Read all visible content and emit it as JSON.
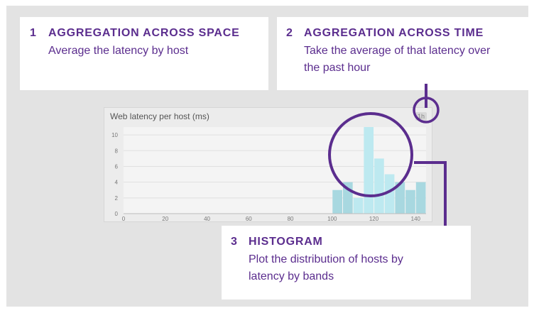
{
  "cards": {
    "space": {
      "number": "1",
      "title": "AGGREGATION ACROSS SPACE",
      "body": "Average the latency by host"
    },
    "time": {
      "number": "2",
      "title": "AGGREGATION ACROSS TIME",
      "body_line1": "Take the average of that latency over",
      "body_line2": "the past hour"
    },
    "histogram": {
      "number": "3",
      "title": "HISTOGRAM",
      "body_line1": "Plot the distribution of hosts by",
      "body_line2": "latency by bands"
    }
  },
  "widget": {
    "title": "Web latency per host (ms)",
    "time_badge": "1h"
  },
  "colors": {
    "accent": "#5b2d8e",
    "bar": "#a8d8e0",
    "bar_highlight": "#bde9f0"
  },
  "chart_data": {
    "type": "bar",
    "bin_width": 5,
    "x": [
      100,
      105,
      110,
      115,
      120,
      125,
      130,
      135,
      140
    ],
    "values": [
      3,
      4,
      2,
      11,
      7,
      5,
      4,
      3,
      4
    ],
    "xticks": [
      "0",
      "20",
      "40",
      "60",
      "80",
      "100",
      "120",
      "140"
    ],
    "xtick_values": [
      0,
      20,
      40,
      60,
      80,
      100,
      120,
      140
    ],
    "yticks": [
      "0",
      "2",
      "4",
      "6",
      "8",
      "10"
    ],
    "ytick_values": [
      0,
      2,
      4,
      6,
      8,
      10
    ],
    "xlim": [
      0,
      145
    ],
    "ylim": [
      0,
      11
    ],
    "grid": true
  }
}
